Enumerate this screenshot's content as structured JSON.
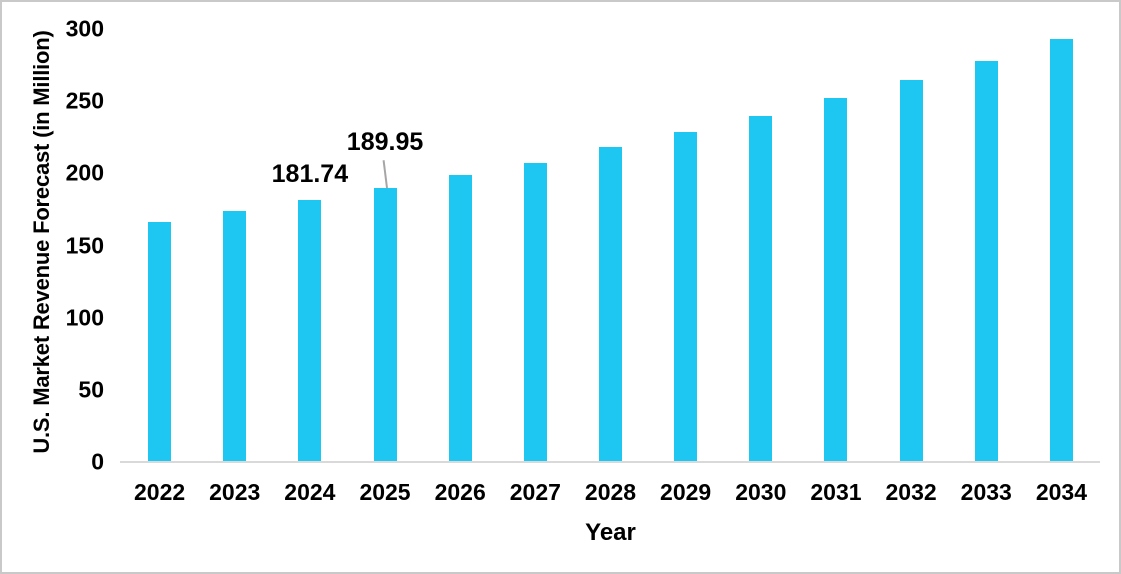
{
  "chart_data": {
    "type": "bar",
    "title": "",
    "xlabel": "Year",
    "ylabel": "U.S. Market Revenue Forecast (in Million)",
    "categories": [
      "2022",
      "2023",
      "2024",
      "2025",
      "2026",
      "2027",
      "2028",
      "2029",
      "2030",
      "2031",
      "2032",
      "2033",
      "2034"
    ],
    "values": [
      166.3,
      173.7,
      181.74,
      189.95,
      198.8,
      207.4,
      218.6,
      228.6,
      239.7,
      252.4,
      264.6,
      277.9,
      293.1
    ],
    "yticks": [
      0,
      50,
      100,
      150,
      200,
      250,
      300
    ],
    "ylim": [
      0,
      300
    ],
    "grid": false,
    "legend": false,
    "bar_color": "#1ec6f2",
    "axis_line_color": "#d9d9d9",
    "leader_line_color": "#a6a6a6",
    "text_color": "#000000",
    "data_labels": [
      {
        "category": "2024",
        "text": "181.74",
        "leader": false
      },
      {
        "category": "2025",
        "text": "189.95",
        "leader": true
      }
    ]
  }
}
